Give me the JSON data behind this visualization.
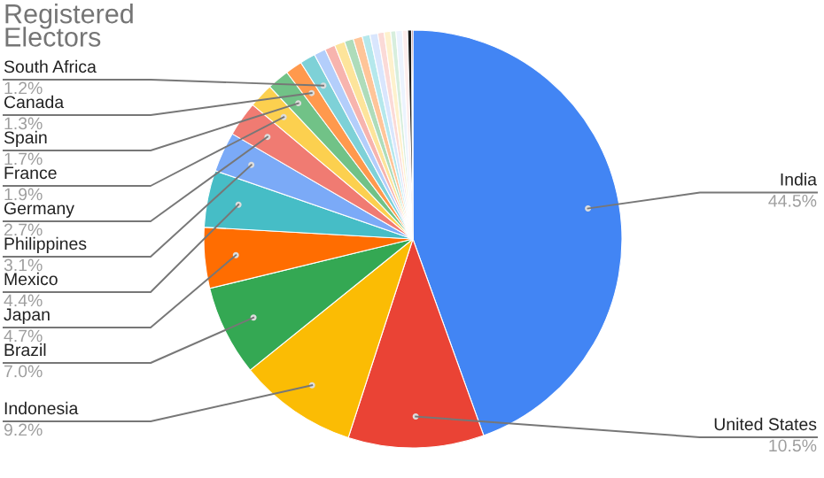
{
  "chart_data": {
    "type": "pie",
    "title": "Registered\nElectors",
    "categories": [
      "India",
      "United States",
      "Indonesia",
      "Brazil",
      "Japan",
      "Mexico",
      "Philippines",
      "Germany",
      "France",
      "Spain",
      "Canada",
      "South Africa",
      null,
      null,
      null,
      null,
      null,
      null,
      null,
      null,
      null,
      null,
      null,
      null,
      null,
      null
    ],
    "values": [
      44.5,
      10.5,
      9.2,
      7.0,
      4.7,
      4.4,
      3.1,
      2.7,
      1.9,
      1.7,
      1.3,
      1.2,
      0.9,
      0.8,
      0.8,
      0.7,
      0.7,
      0.6,
      0.6,
      0.5,
      0.5,
      0.4,
      0.5,
      0.4,
      0.3,
      0.1
    ],
    "value_labels": [
      "44.5%",
      "10.5%",
      "9.2%",
      "7.0%",
      "4.7%",
      "4.4%",
      "3.1%",
      "2.7%",
      "1.9%",
      "1.7%",
      "1.3%",
      "1.2%",
      null,
      null,
      null,
      null,
      null,
      null,
      null,
      null,
      null,
      null,
      null,
      null,
      null,
      null
    ],
    "colors": [
      "#4285f4",
      "#ea4335",
      "#fbbc04",
      "#34a853",
      "#ff6d01",
      "#46bdc6",
      "#7baaf7",
      "#f07b72",
      "#fcd04f",
      "#71c287",
      "#ff994d",
      "#7ed1d7",
      "#b3cefb",
      "#f7b4ae",
      "#fde49b",
      "#aedcba",
      "#ffc599",
      "#b5e8ec",
      "#d9e6fd",
      "#fbdad7",
      "#fef1cd",
      "#d7eedd",
      "#ecf3fe",
      "#fdeeed",
      "#1a1a1a",
      "#8b1a1a"
    ],
    "legend": false
  }
}
